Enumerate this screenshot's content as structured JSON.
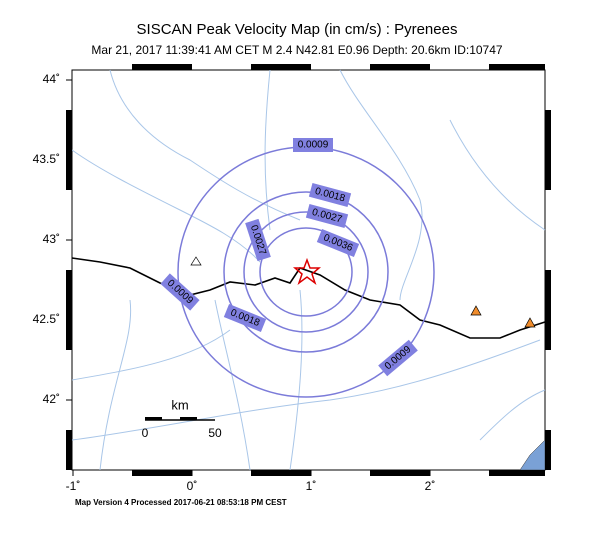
{
  "header": {
    "title": "SISCAN Peak Velocity Map (in cm/s) : Pyrenees",
    "subtitle": "Mar 21, 2017 11:39:41 AM CET   M 2.4   N42.81 E0.96   Depth: 20.6km   ID:10747"
  },
  "lat_ticks": [
    {
      "value": 44,
      "label": "44˚"
    },
    {
      "value": 43.5,
      "label": "43.5˚"
    },
    {
      "value": 43,
      "label": "43˚"
    },
    {
      "value": 42.5,
      "label": "42.5˚"
    },
    {
      "value": 42,
      "label": "42˚"
    }
  ],
  "lon_ticks": [
    {
      "value": -1,
      "label": "-1˚"
    },
    {
      "value": 0,
      "label": "0˚"
    },
    {
      "value": 1,
      "label": "1˚"
    },
    {
      "value": 2,
      "label": "2˚"
    }
  ],
  "contour_labels": [
    0.0009,
    0.0018,
    0.0027,
    0.0036,
    0.0027,
    0.0009,
    0.0018,
    0.0009
  ],
  "scale_bar": {
    "unit": "km",
    "start": 0,
    "end": 50
  },
  "footer": "Map Version 4 Processed 2017-06-21 08:53:18 PM CEST"
}
